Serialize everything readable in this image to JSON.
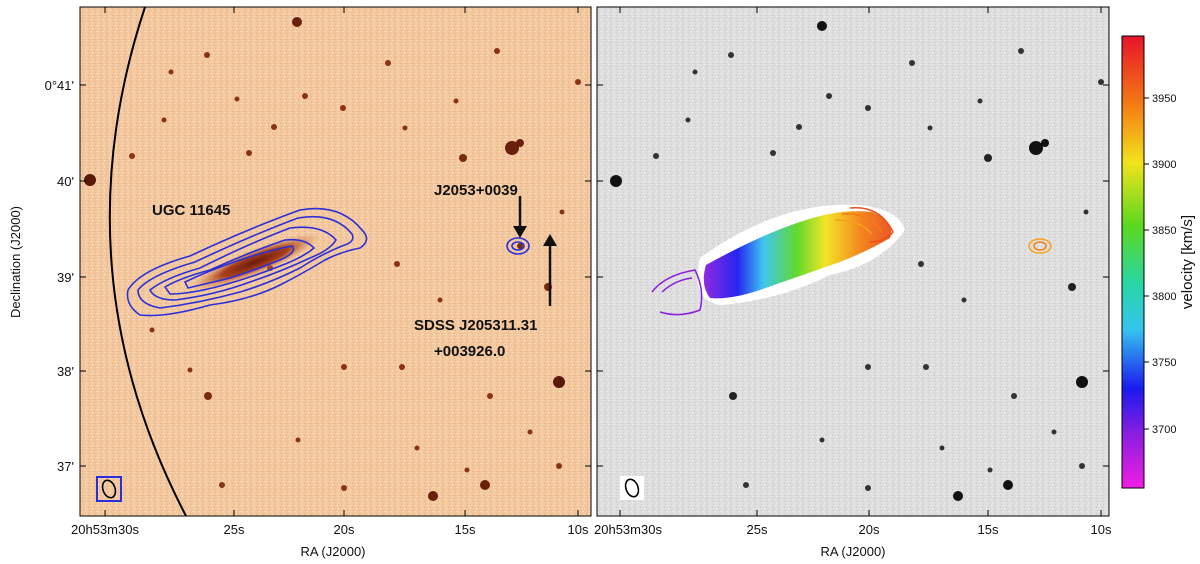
{
  "figure": {
    "left_panel": {
      "ylabel": "Declination (J2000)",
      "xlabel": "RA (J2000)",
      "y_ticks": [
        "0°41'",
        "40'",
        "39'",
        "38'",
        "37'"
      ],
      "x_ticks_first": "20h53m30s",
      "x_ticks": [
        "25s",
        "20s",
        "15s",
        "10s"
      ],
      "annotations": {
        "galaxy": "UGC 11645",
        "source": "J2053+0039",
        "sdss_line1": "SDSS J205311.31",
        "sdss_line2": "+003926.0"
      },
      "contour_color": "#2b2fd9",
      "background_color": "#f4c9a0"
    },
    "right_panel": {
      "xlabel": "RA (J2000)",
      "x_ticks_first": "20h53m30s",
      "x_ticks": [
        "25s",
        "20s",
        "15s",
        "10s"
      ],
      "background_color": "#dcdcdc"
    },
    "colorbar": {
      "label": "velocity [km/s]",
      "ticks": [
        "3950",
        "3900",
        "3850",
        "3800",
        "3750",
        "3700"
      ],
      "range": [
        3655,
        3995
      ],
      "colormap": "gist_rainbow"
    }
  }
}
